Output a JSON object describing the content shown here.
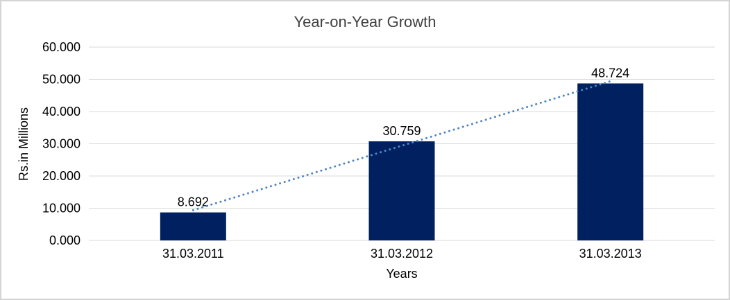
{
  "chart_data": {
    "type": "bar",
    "title": "Year-on-Year Growth",
    "xlabel": "Years",
    "ylabel": "Rs.in Millions",
    "categories": [
      "31.03.2011",
      "31.03.2012",
      "31.03.2013"
    ],
    "values": [
      8.692,
      30.759,
      48.724
    ],
    "value_labels": [
      "8.692",
      "30.759",
      "48.724"
    ],
    "ylim": [
      0,
      60
    ],
    "ytick_values": [
      0,
      10,
      20,
      30,
      40,
      50,
      60
    ],
    "ytick_labels": [
      "0.000",
      "10.000",
      "20.000",
      "30.000",
      "40.000",
      "50.000",
      "60.000"
    ],
    "grid": true,
    "legend": false,
    "trendline": {
      "type": "linear",
      "style": "dotted"
    },
    "colors": {
      "bar": "#002060",
      "trendline": "#4f86c6",
      "gridline": "#d9d9d9",
      "title_text": "#404040",
      "axis_text": "#000000",
      "frame_border": "#d4d4d4"
    }
  }
}
